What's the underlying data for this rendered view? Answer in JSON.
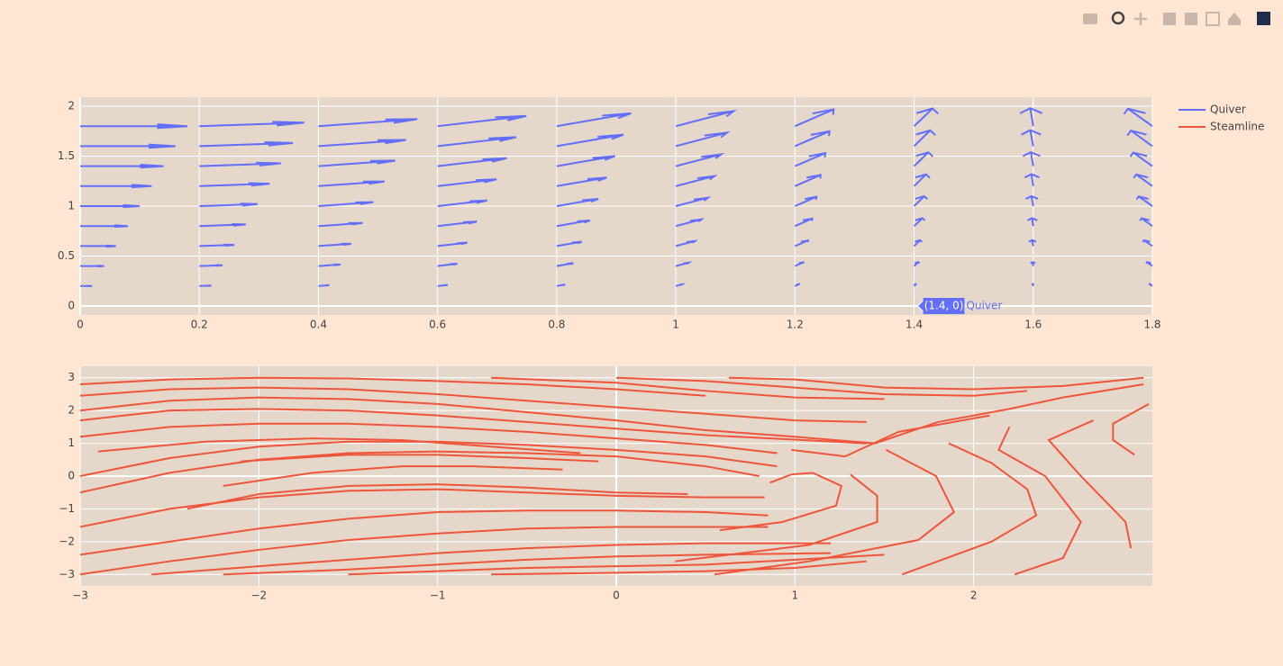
{
  "chart_data": [
    {
      "type": "quiver",
      "xlim": [
        0,
        1.8
      ],
      "ylim": [
        -0.09,
        2.09
      ],
      "xticks": [
        0,
        0.2,
        0.4,
        0.6,
        0.8,
        1,
        1.2,
        1.4,
        1.6,
        1.8
      ],
      "yticks": [
        0,
        0.5,
        1,
        1.5,
        2
      ],
      "grid": true,
      "series": [
        {
          "name": "Quiver",
          "color": "#636efa",
          "x": [
            0,
            0.2,
            0.4,
            0.6,
            0.8,
            1,
            1.2,
            1.4,
            1.6,
            1.8
          ],
          "y": [
            0,
            0.2,
            0.4,
            0.6,
            0.8,
            1,
            1.2,
            1.4,
            1.6,
            1.8
          ],
          "u": [
            [
              0,
              0,
              0,
              0,
              0,
              0,
              0,
              0,
              0,
              0
            ],
            [
              0.2,
              0.2,
              0.18,
              0.17,
              0.14,
              0.11,
              0.07,
              0.03,
              -0.01,
              -0.05
            ],
            [
              0.4,
              0.39,
              0.37,
              0.33,
              0.28,
              0.22,
              0.14,
              0.07,
              -0.01,
              -0.09
            ],
            [
              0.6,
              0.59,
              0.55,
              0.5,
              0.42,
              0.32,
              0.22,
              0.1,
              -0.02,
              -0.14
            ],
            [
              0.8,
              0.78,
              0.74,
              0.66,
              0.56,
              0.43,
              0.29,
              0.14,
              -0.02,
              -0.18
            ],
            [
              1,
              0.98,
              0.92,
              0.83,
              0.7,
              0.54,
              0.36,
              0.17,
              -0.03,
              -0.23
            ],
            [
              1.2,
              1.18,
              1.11,
              0.99,
              0.84,
              0.65,
              0.43,
              0.2,
              -0.03,
              -0.27
            ],
            [
              1.4,
              1.37,
              1.29,
              1.16,
              0.98,
              0.76,
              0.51,
              0.24,
              -0.04,
              -0.32
            ],
            [
              1.6,
              1.57,
              1.47,
              1.32,
              1.12,
              0.86,
              0.58,
              0.27,
              -0.05,
              -0.36
            ],
            [
              1.8,
              1.76,
              1.66,
              1.49,
              1.25,
              0.97,
              0.65,
              0.31,
              -0.05,
              -0.41
            ]
          ],
          "v": [
            [
              0,
              0,
              0,
              0,
              0,
              0,
              0,
              0,
              0,
              0
            ],
            [
              0,
              0.04,
              0.08,
              0.11,
              0.14,
              0.17,
              0.19,
              0.2,
              0.2,
              0.19
            ],
            [
              0,
              0.08,
              0.16,
              0.23,
              0.29,
              0.34,
              0.37,
              0.39,
              0.4,
              0.39
            ],
            [
              0,
              0.12,
              0.23,
              0.34,
              0.43,
              0.5,
              0.56,
              0.59,
              0.6,
              0.58
            ],
            [
              0,
              0.16,
              0.31,
              0.45,
              0.57,
              0.67,
              0.75,
              0.79,
              0.8,
              0.78
            ],
            [
              0,
              0.2,
              0.39,
              0.56,
              0.72,
              0.84,
              0.93,
              0.99,
              1,
              0.97
            ],
            [
              0,
              0.24,
              0.47,
              0.68,
              0.86,
              1.01,
              1.12,
              1.18,
              1.2,
              1.17
            ],
            [
              0,
              0.28,
              0.55,
              0.79,
              1,
              1.18,
              1.3,
              1.38,
              1.4,
              1.36
            ],
            [
              0,
              0.32,
              0.62,
              0.9,
              1.15,
              1.35,
              1.49,
              1.58,
              1.6,
              1.56
            ],
            [
              0,
              0.36,
              0.7,
              1.02,
              1.29,
              1.51,
              1.68,
              1.77,
              1.8,
              1.75
            ]
          ]
        }
      ],
      "hover": {
        "x": 1.4,
        "y": 0,
        "label": "(1.4, 0)"
      }
    },
    {
      "type": "streamline",
      "xlim": [
        -3,
        3
      ],
      "ylim": [
        -3.35,
        3.35
      ],
      "xticks": [
        {
          "value": -3,
          "label": "−3"
        },
        {
          "value": -2,
          "label": "−2"
        },
        {
          "value": -1,
          "label": "−1"
        },
        0,
        1,
        2
      ],
      "yticks": [
        {
          "value": -3,
          "label": "−3"
        },
        {
          "value": -2,
          "label": "−2"
        },
        {
          "value": -1,
          "label": "−1"
        },
        0,
        1,
        2,
        3
      ],
      "grid": true,
      "series": [
        {
          "name": "Steamline",
          "color": "#ef553b",
          "lines": [
            {
              "x": [
                -3,
                -2.5,
                -2,
                -1.5,
                -1,
                -0.5,
                0,
                0.5
              ],
              "y": [
                2.8,
                2.95,
                3.0,
                2.98,
                2.9,
                2.8,
                2.65,
                2.45
              ]
            },
            {
              "x": [
                -0.7,
                0,
                0.5,
                1,
                1.5
              ],
              "y": [
                3.0,
                2.85,
                2.6,
                2.4,
                2.35
              ]
            },
            {
              "x": [
                0,
                0.5,
                1,
                1.5,
                2,
                2.3
              ],
              "y": [
                3.0,
                2.9,
                2.7,
                2.5,
                2.45,
                2.6
              ]
            },
            {
              "x": [
                0.63,
                1,
                1.5,
                2,
                2.5,
                2.95
              ],
              "y": [
                3.0,
                2.95,
                2.7,
                2.65,
                2.75,
                3.0
              ]
            },
            {
              "x": [
                -3,
                -2.5,
                -2,
                -1.5,
                -1,
                -0.5,
                0,
                0.5,
                1,
                1.4
              ],
              "y": [
                2.45,
                2.65,
                2.7,
                2.65,
                2.5,
                2.3,
                2.1,
                1.9,
                1.7,
                1.65
              ]
            },
            {
              "x": [
                -3,
                -2.5,
                -2,
                -1.5,
                -1,
                -0.5,
                0,
                0.5,
                1,
                1.45
              ],
              "y": [
                2.0,
                2.3,
                2.4,
                2.35,
                2.2,
                1.95,
                1.7,
                1.4,
                1.2,
                1.0
              ]
            },
            {
              "x": [
                -3,
                -2.5,
                -2,
                -1.5,
                -1,
                -0.5,
                0,
                0.5,
                1.4
              ],
              "y": [
                1.7,
                2.0,
                2.05,
                2.0,
                1.85,
                1.65,
                1.45,
                1.25,
                1.0
              ]
            },
            {
              "x": [
                0.98,
                1.28,
                1.58,
                2.09
              ],
              "y": [
                0.8,
                0.6,
                1.35,
                1.85
              ]
            },
            {
              "x": [
                1.45,
                1.8,
                2.2,
                2.5,
                2.95
              ],
              "y": [
                1.0,
                1.65,
                2.05,
                2.4,
                2.8
              ]
            },
            {
              "x": [
                1.86,
                2.1,
                2.3,
                2.35,
                2.1,
                1.6
              ],
              "y": [
                1.0,
                0.4,
                -0.4,
                -1.2,
                -2.0,
                -3.0
              ]
            },
            {
              "x": [
                2.2,
                2.14,
                2.4,
                2.6,
                2.5,
                2.23
              ],
              "y": [
                1.5,
                0.8,
                0,
                -1.4,
                -2.5,
                -3.0
              ]
            },
            {
              "x": [
                2.67,
                2.42,
                2.6,
                2.85,
                2.88
              ],
              "y": [
                1.7,
                1.1,
                0,
                -1.4,
                -2.2
              ]
            },
            {
              "x": [
                2.98,
                2.78,
                2.78,
                2.9
              ],
              "y": [
                2.2,
                1.6,
                1.1,
                0.65
              ]
            },
            {
              "x": [
                0.86,
                0.98,
                1.1,
                1.26,
                1.23,
                0.93,
                0.58
              ],
              "y": [
                -0.2,
                0.05,
                0.1,
                -0.3,
                -0.9,
                -1.4,
                -1.65
              ]
            },
            {
              "x": [
                1.31,
                1.46,
                1.46,
                1.08,
                0.33
              ],
              "y": [
                0.05,
                -0.6,
                -1.4,
                -2.1,
                -2.6
              ]
            },
            {
              "x": [
                1.51,
                1.79,
                1.89,
                1.69,
                1.08,
                0.55
              ],
              "y": [
                0.8,
                0,
                -1.1,
                -1.95,
                -2.6,
                -3.0
              ]
            },
            {
              "x": [
                -3,
                -2.5,
                -2,
                -1.5,
                -1,
                -0.5,
                0,
                0.5,
                0.8
              ],
              "y": [
                -0.5,
                0.1,
                0.5,
                0.7,
                0.75,
                0.7,
                0.6,
                0.3,
                0.0
              ]
            },
            {
              "x": [
                -3,
                -2.5,
                -2,
                -1.5,
                -1,
                -0.5,
                0,
                0.5,
                0.9
              ],
              "y": [
                0.0,
                0.55,
                0.9,
                1.05,
                1.05,
                0.95,
                0.8,
                0.6,
                0.3
              ]
            },
            {
              "x": [
                -3,
                -2.5,
                -2,
                -1.5,
                -1,
                -0.5,
                0,
                0.5,
                0.9
              ],
              "y": [
                1.2,
                1.5,
                1.6,
                1.6,
                1.5,
                1.35,
                1.15,
                0.95,
                0.7
              ]
            },
            {
              "x": [
                -3,
                -2.5,
                -2,
                -1.5,
                -1,
                -0.5,
                0,
                0.5,
                0.83
              ],
              "y": [
                -1.55,
                -1.0,
                -0.65,
                -0.45,
                -0.4,
                -0.5,
                -0.6,
                -0.65,
                -0.65
              ]
            },
            {
              "x": [
                -3,
                -2.5,
                -2,
                -1.5,
                -1,
                -0.5,
                0,
                0.5,
                0.85
              ],
              "y": [
                -2.4,
                -2.0,
                -1.6,
                -1.3,
                -1.1,
                -1.05,
                -1.05,
                -1.1,
                -1.2
              ]
            },
            {
              "x": [
                -3,
                -2.5,
                -2,
                -1.5,
                -1,
                -0.5,
                0,
                0.5,
                0.85
              ],
              "y": [
                -3.0,
                -2.6,
                -2.25,
                -1.95,
                -1.75,
                -1.6,
                -1.55,
                -1.55,
                -1.55
              ]
            },
            {
              "x": [
                -2.6,
                -2,
                -1.5,
                -1,
                -0.5,
                0,
                0.5,
                1.2
              ],
              "y": [
                -3.0,
                -2.75,
                -2.55,
                -2.35,
                -2.2,
                -2.1,
                -2.05,
                -2.05
              ]
            },
            {
              "x": [
                -2.2,
                -1.5,
                -1,
                -0.5,
                0,
                0.5,
                1.2
              ],
              "y": [
                -3.0,
                -2.85,
                -2.7,
                -2.55,
                -2.45,
                -2.4,
                -2.35
              ]
            },
            {
              "x": [
                -1.5,
                -1,
                -0.5,
                0,
                0.5,
                1.5
              ],
              "y": [
                -3.0,
                -2.9,
                -2.8,
                -2.75,
                -2.7,
                -2.4
              ]
            },
            {
              "x": [
                -0.7,
                0,
                0.5,
                1,
                1.4
              ],
              "y": [
                -3.0,
                -2.95,
                -2.9,
                -2.8,
                -2.6
              ]
            },
            {
              "x": [
                -2.4,
                -2,
                -1.5,
                -1,
                -0.5,
                0,
                0.4
              ],
              "y": [
                -1.0,
                -0.55,
                -0.3,
                -0.25,
                -0.35,
                -0.5,
                -0.55
              ]
            },
            {
              "x": [
                -2.2,
                -1.7,
                -1.2,
                -0.8,
                -0.3
              ],
              "y": [
                -0.3,
                0.1,
                0.3,
                0.3,
                0.2
              ]
            },
            {
              "x": [
                -2.1,
                -1.5,
                -1,
                -0.5,
                -0.1
              ],
              "y": [
                0.45,
                0.65,
                0.65,
                0.55,
                0.45
              ]
            },
            {
              "x": [
                -2.9,
                -2.3,
                -1.7,
                -1.2,
                -0.7,
                -0.2
              ],
              "y": [
                0.75,
                1.05,
                1.15,
                1.1,
                0.9,
                0.7
              ]
            }
          ]
        }
      ]
    }
  ]
}
